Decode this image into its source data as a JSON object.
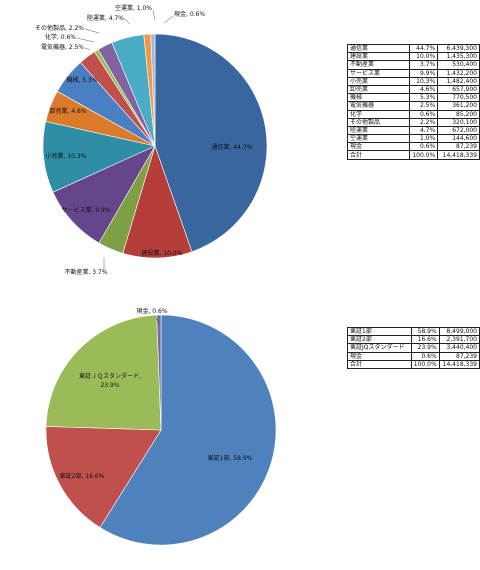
{
  "chart_data": [
    {
      "type": "pie",
      "slices": [
        {
          "name": "通信業",
          "label": "通信業, 44.7%",
          "value": 44.7,
          "color": "#3a66a0"
        },
        {
          "name": "建設業",
          "label": "建設業, 10.0%",
          "value": 10.0,
          "color": "#b53d3a"
        },
        {
          "name": "不動産業",
          "label": "不動産業, 3.7%",
          "value": 3.7,
          "color": "#7f9f45"
        },
        {
          "name": "サービス業",
          "label": "サービス業, 9.9%",
          "value": 9.9,
          "color": "#65468d"
        },
        {
          "name": "小売業",
          "label": "小売業, 10.3%",
          "value": 10.3,
          "color": "#2e8ea6"
        },
        {
          "name": "卸売業",
          "label": "卸売業, 4.6%",
          "value": 4.6,
          "color": "#dc7a2c"
        },
        {
          "name": "機械",
          "label": "機械, 5.3%",
          "value": 5.3,
          "color": "#4a7fc1"
        },
        {
          "name": "電気機器",
          "label": "電気機器, 2.5%",
          "value": 2.5,
          "color": "#c0504d"
        },
        {
          "name": "化学",
          "label": "化学, 0.6%",
          "value": 0.6,
          "color": "#9bbb59"
        },
        {
          "name": "その他製品",
          "label": "その他製品, 2.2%",
          "value": 2.2,
          "color": "#8064a2"
        },
        {
          "name": "陸運業",
          "label": "陸運業, 4.7%",
          "value": 4.7,
          "color": "#4bacc6"
        },
        {
          "name": "空運業",
          "label": "空運業, 1.0%",
          "value": 1.0,
          "color": "#f79646"
        },
        {
          "name": "現金",
          "label": "現金, 0.6%",
          "value": 0.6,
          "color": "#9dbbe0"
        }
      ],
      "table": [
        {
          "name": "通信業",
          "pct": "44.7%",
          "amount": "6,439,300"
        },
        {
          "name": "建設業",
          "pct": "10.0%",
          "amount": "1,435,300"
        },
        {
          "name": "不動産業",
          "pct": "3.7%",
          "amount": "530,400"
        },
        {
          "name": "サービス業",
          "pct": "9.9%",
          "amount": "1,432,200"
        },
        {
          "name": "小売業",
          "pct": "10.3%",
          "amount": "1,482,400"
        },
        {
          "name": "卸売業",
          "pct": "4.6%",
          "amount": "657,900"
        },
        {
          "name": "機械",
          "pct": "5.3%",
          "amount": "770,500"
        },
        {
          "name": "電気機器",
          "pct": "2.5%",
          "amount": "361,200"
        },
        {
          "name": "化学",
          "pct": "0.6%",
          "amount": "85,200"
        },
        {
          "name": "その他製品",
          "pct": "2.2%",
          "amount": "320,100"
        },
        {
          "name": "陸運業",
          "pct": "4.7%",
          "amount": "672,000"
        },
        {
          "name": "空運業",
          "pct": "1.0%",
          "amount": "144,600"
        },
        {
          "name": "現金",
          "pct": "0.6%",
          "amount": "87,239"
        },
        {
          "name": "合計",
          "pct": "100.0%",
          "amount": "14,418,339"
        }
      ]
    },
    {
      "type": "pie",
      "slices": [
        {
          "name": "東証1部",
          "label": "東証1部, 58.9%",
          "value": 58.9,
          "color": "#4f81bd"
        },
        {
          "name": "東証2部",
          "label": "東証2部, 16.6%",
          "value": 16.6,
          "color": "#c0504d"
        },
        {
          "name": "東証ＪＱスタンダード",
          "label": "東証ＪＱスタンダード, 23.9%",
          "value": 23.9,
          "color": "#9bbb59"
        },
        {
          "name": "現金",
          "label": "現金, 0.6%",
          "value": 0.6,
          "color": "#8064a2"
        }
      ],
      "table": [
        {
          "name": "東証1部",
          "pct": "58.9%",
          "amount": "8,499,000"
        },
        {
          "name": "東証2部",
          "pct": "16.6%",
          "amount": "2,391,700"
        },
        {
          "name": "東証JQスタンダード",
          "pct": "23.9%",
          "amount": "3,440,400"
        },
        {
          "name": "現金",
          "pct": "0.6%",
          "amount": "87,239"
        },
        {
          "name": "合計",
          "pct": "100.0%",
          "amount": "14,418,339"
        }
      ]
    }
  ]
}
